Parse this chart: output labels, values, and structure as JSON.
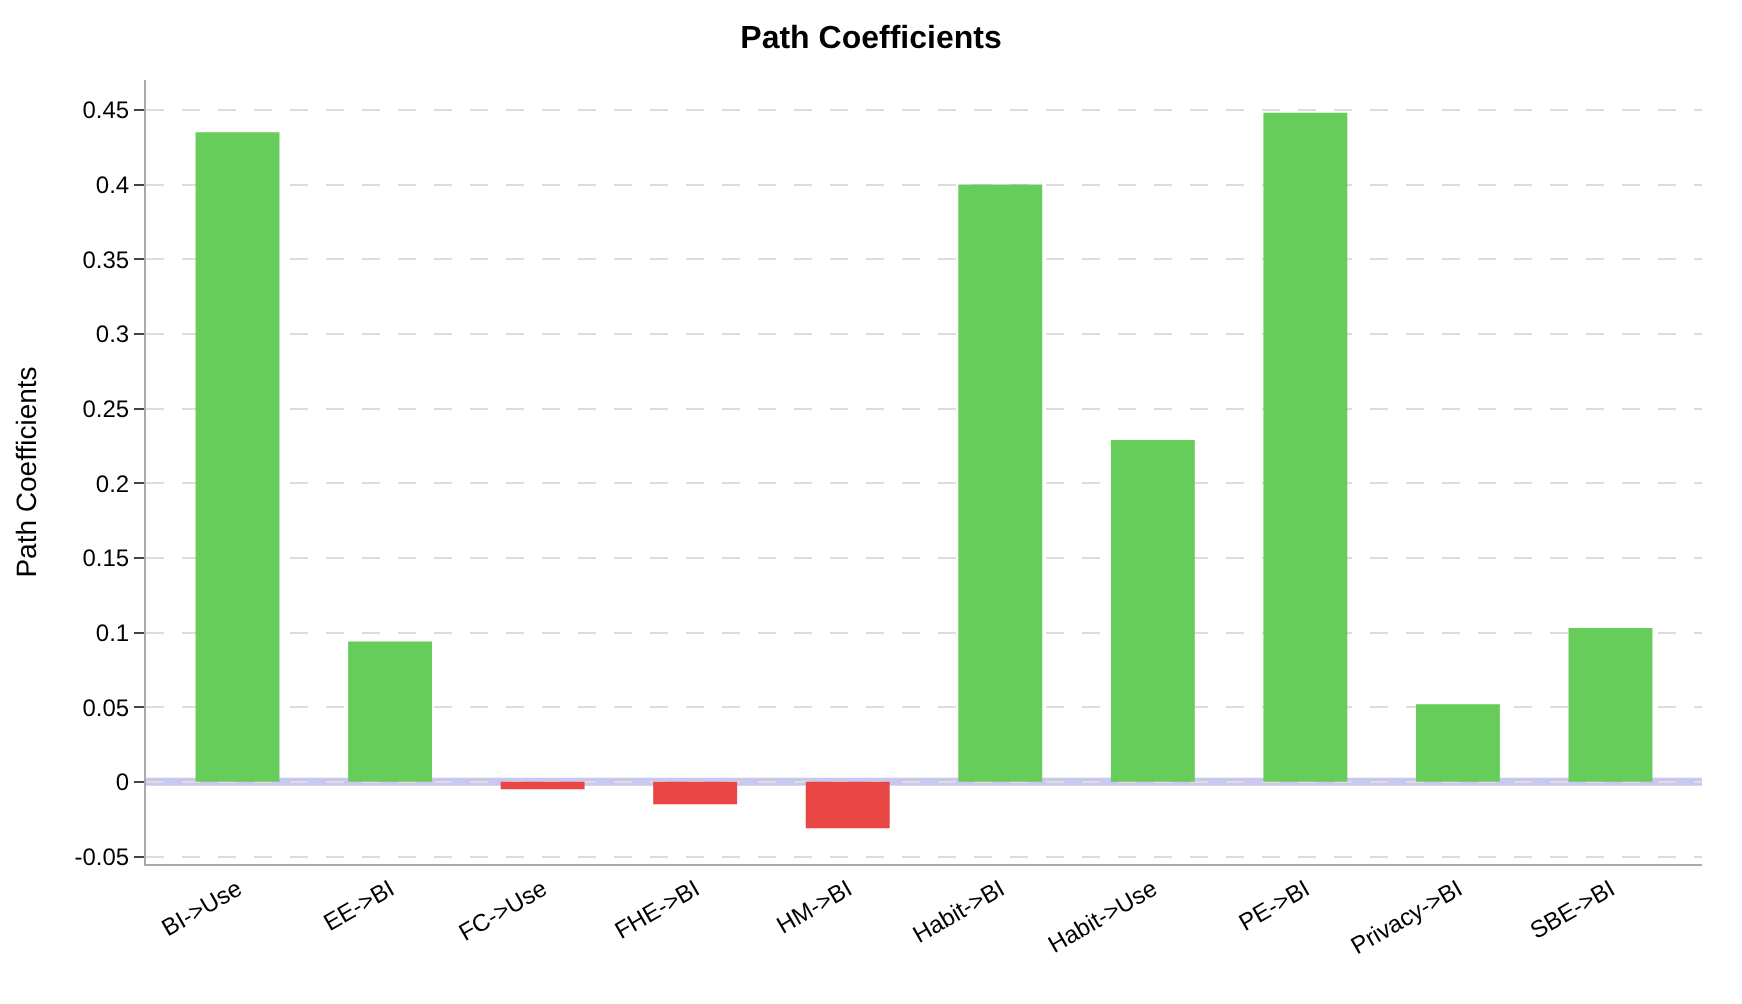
{
  "chart_data": {
    "type": "bar",
    "title": "Path Coefficients",
    "ylabel": "Path Coefficients",
    "categories": [
      "BI->Use",
      "EE->BI",
      "FC->Use",
      "FHE->BI",
      "HM->BI",
      "Habit->BI",
      "Habit->Use",
      "PE->BI",
      "Privacy->BI",
      "SBE->BI"
    ],
    "values": [
      0.435,
      0.094,
      -0.005,
      -0.015,
      -0.031,
      0.4,
      0.229,
      0.448,
      0.052,
      0.103
    ],
    "colors": [
      "#66cc5a",
      "#66cc5a",
      "#e84545",
      "#e84545",
      "#e84545",
      "#66cc5a",
      "#66cc5a",
      "#66cc5a",
      "#66cc5a",
      "#66cc5a"
    ],
    "ylim": [
      -0.055,
      0.47
    ],
    "yticks": [
      -0.05,
      0,
      0.05,
      0.1,
      0.15,
      0.2,
      0.25,
      0.3,
      0.35,
      0.4,
      0.45
    ],
    "ref_lines": [
      {
        "axis": "y",
        "value": 0,
        "color": "#c8c8f0"
      }
    ],
    "grid": "y"
  }
}
